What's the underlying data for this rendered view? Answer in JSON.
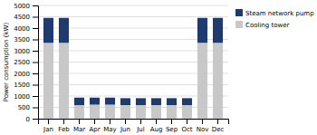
{
  "chart_data": {
    "type": "bar",
    "stacked": true,
    "categories": [
      "Jan",
      "Feb",
      "Mar",
      "Apr",
      "May",
      "Jun",
      "Jul",
      "Aug",
      "Sep",
      "Oct",
      "Nov",
      "Dec"
    ],
    "series": [
      {
        "name": "Cooling tower",
        "color": "#c8c8c8",
        "values": [
          3350,
          3350,
          600,
          620,
          620,
          600,
          600,
          600,
          600,
          600,
          3350,
          3350
        ]
      },
      {
        "name": "Steam network pump",
        "color": "#1f3b6e",
        "values": [
          1100,
          1100,
          330,
          310,
          310,
          305,
          305,
          305,
          305,
          305,
          1100,
          1100
        ]
      }
    ],
    "ylabel": "Power consumption (kW)",
    "ylim": [
      0,
      5000
    ],
    "yticks": [
      0,
      500,
      1000,
      1500,
      2000,
      2500,
      3000,
      3500,
      4000,
      4500,
      5000
    ],
    "grid": true,
    "legend": "right"
  }
}
